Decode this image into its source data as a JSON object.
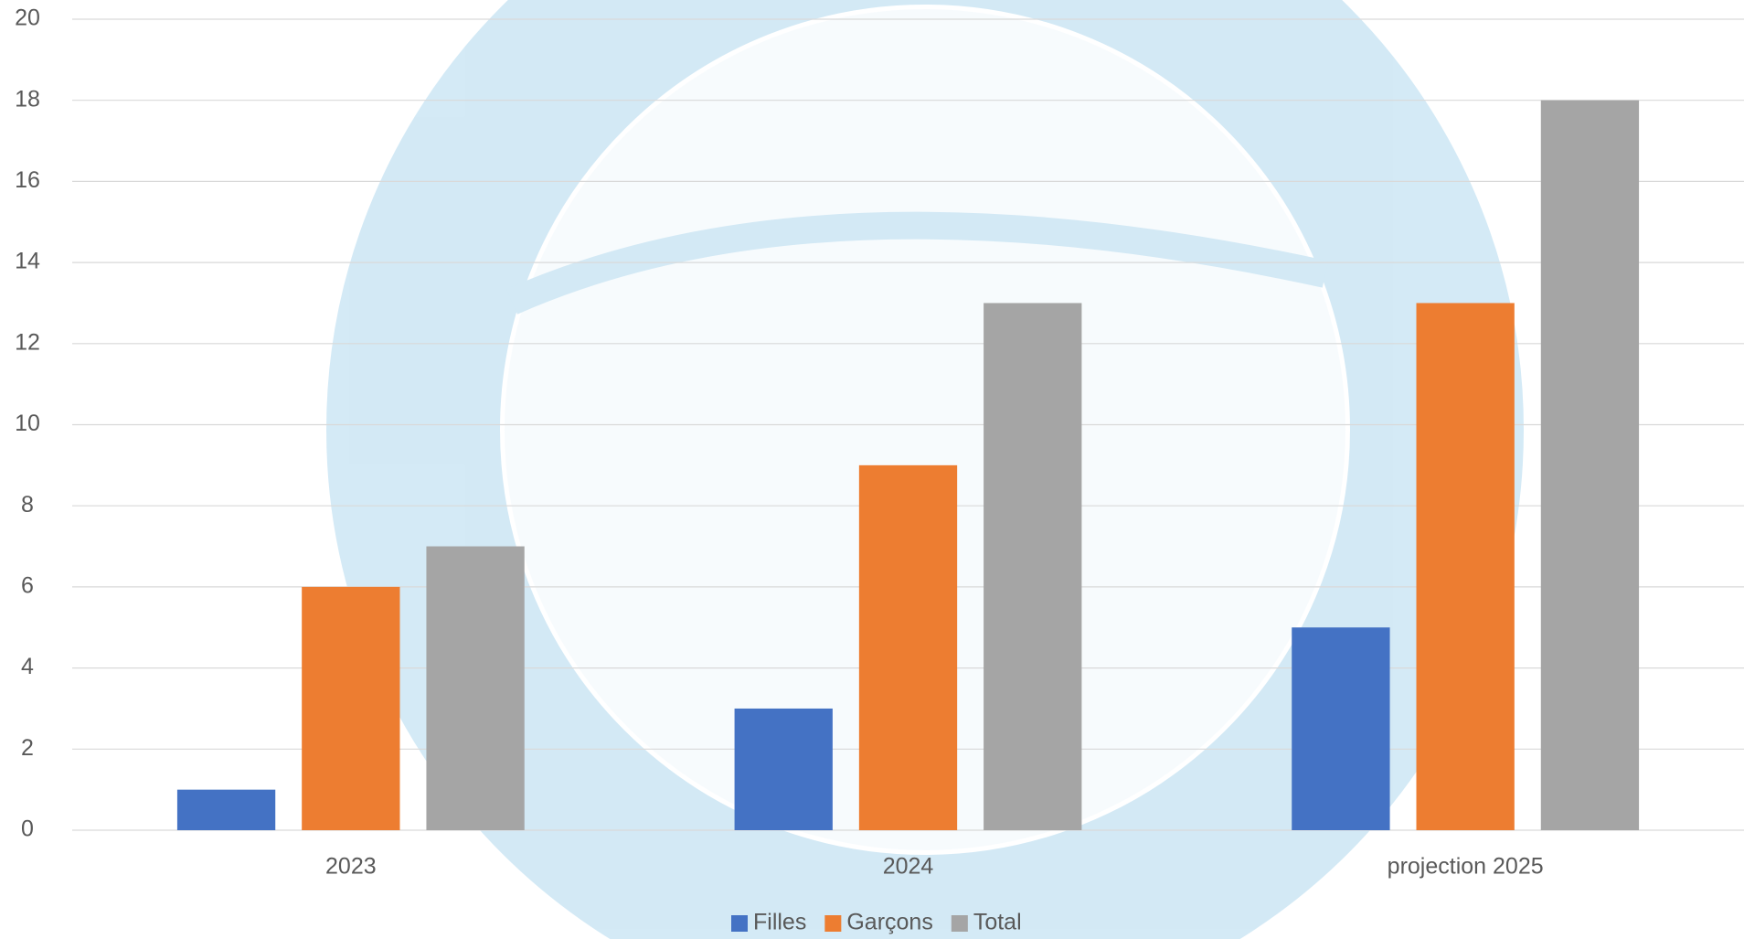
{
  "chart_data": {
    "type": "bar",
    "categories": [
      "2023",
      "2024",
      "projection 2025"
    ],
    "series": [
      {
        "name": "Filles",
        "color": "#4472c4",
        "values": [
          1,
          3,
          5
        ]
      },
      {
        "name": "Garçons",
        "color": "#ed7d31",
        "values": [
          6,
          9,
          13
        ]
      },
      {
        "name": "Total",
        "color": "#a5a5a5",
        "values": [
          7,
          13,
          18
        ]
      }
    ],
    "ylim": [
      0,
      20
    ],
    "yticks": [
      0,
      2,
      4,
      6,
      8,
      10,
      12,
      14,
      16,
      18,
      20
    ],
    "grid": true,
    "legend": "bottom"
  }
}
